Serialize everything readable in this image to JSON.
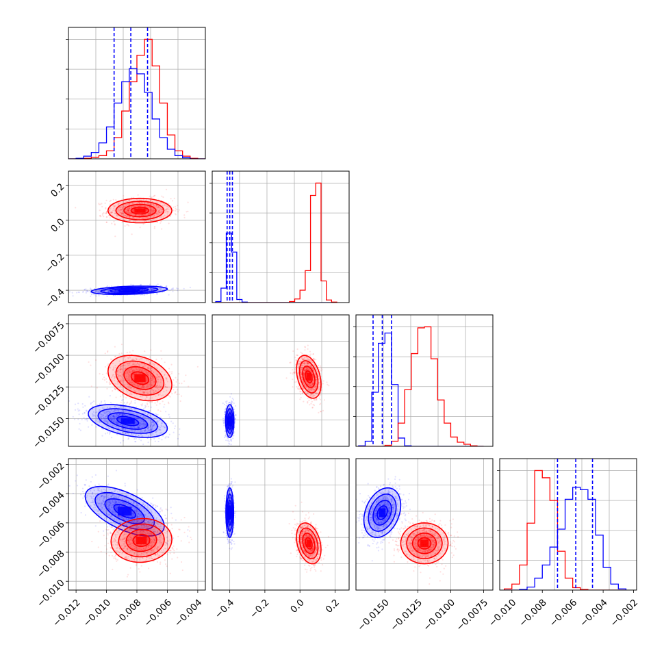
{
  "chart_data": {
    "type": "corner",
    "parameters": 4,
    "grid": true,
    "series": [
      {
        "color": "#0000ff",
        "means": [
          -0.0085,
          -0.4,
          -0.0152,
          -0.0053
        ],
        "stds": [
          0.0012,
          0.012,
          0.0007,
          0.00085
        ],
        "quantiles": [
          [
            -0.0095,
            -0.0084,
            -0.0073
          ],
          [
            -0.415,
            -0.4,
            -0.385
          ],
          [
            -0.0159,
            -0.0152,
            -0.0145
          ],
          [
            -0.007,
            -0.0058,
            -0.0047
          ]
        ]
      },
      {
        "color": "#ff0000",
        "means": [
          -0.0076,
          0.06,
          -0.0119,
          -0.0073
        ],
        "stds": [
          0.001,
          0.04,
          0.0009,
          0.0007
        ]
      }
    ],
    "panels": [
      {
        "id": "p00",
        "type": "histogram",
        "param": 0,
        "xlim": [
          -0.0125,
          -0.0035
        ],
        "yticks": 4,
        "series": [
          {
            "color": "#ff0000",
            "bin_edges": [
              -0.0125,
              -0.012,
              -0.0115,
              -0.011,
              -0.0105,
              -0.01,
              -0.0095,
              -0.009,
              -0.0085,
              -0.008,
              -0.0075,
              -0.007,
              -0.0065,
              -0.006,
              -0.0055,
              -0.005,
              -0.0045,
              -0.004,
              -0.0035
            ],
            "counts": [
              0,
              0,
              1,
              3,
              6,
              15,
              40,
              90,
              145,
              195,
              225,
              175,
              105,
              45,
              15,
              5,
              1,
              0
            ]
          },
          {
            "color": "#0000ff",
            "bin_edges": [
              -0.0125,
              -0.012,
              -0.0115,
              -0.011,
              -0.0105,
              -0.01,
              -0.0095,
              -0.009,
              -0.0085,
              -0.008,
              -0.0075,
              -0.007,
              -0.0065,
              -0.006,
              -0.0055,
              -0.005,
              -0.0045,
              -0.004,
              -0.0035
            ],
            "counts": [
              0,
              1,
              5,
              12,
              30,
              60,
              105,
              145,
              170,
              160,
              125,
              75,
              40,
              18,
              6,
              2,
              0,
              0
            ]
          }
        ],
        "quantile_lines": [
          -0.0095,
          -0.0084,
          -0.0073
        ]
      },
      {
        "id": "p11",
        "type": "histogram",
        "param": 1,
        "xlim": [
          -0.5,
          0.28
        ],
        "yticks": 4,
        "series": [
          {
            "color": "#0000ff",
            "bin_edges": [
              -0.48,
              -0.45,
              -0.42,
              -0.39,
              -0.36,
              -0.33,
              -0.3,
              -0.27,
              -0.24,
              -0.21,
              -0.18,
              -0.15,
              -0.12,
              -0.09,
              -0.06,
              -0.03,
              0.0,
              0.03,
              0.06,
              0.09,
              0.12,
              0.15,
              0.18,
              0.21
            ],
            "counts": [
              2,
              28,
              135,
              98,
              6,
              1,
              0,
              0,
              0,
              0,
              0,
              0,
              0,
              0,
              0,
              0,
              0,
              0,
              0,
              0,
              0,
              0,
              0
            ]
          },
          {
            "color": "#ff0000",
            "bin_edges": [
              -0.48,
              -0.45,
              -0.42,
              -0.39,
              -0.36,
              -0.33,
              -0.3,
              -0.27,
              -0.24,
              -0.21,
              -0.18,
              -0.15,
              -0.12,
              -0.09,
              -0.06,
              -0.03,
              0.0,
              0.03,
              0.06,
              0.09,
              0.12,
              0.15,
              0.18,
              0.21
            ],
            "counts": [
              0,
              0,
              0,
              0,
              0,
              0,
              0,
              0,
              0,
              0,
              0,
              0,
              0,
              0,
              2,
              7,
              24,
              62,
              208,
              232,
              42,
              5,
              1
            ]
          }
        ],
        "quantile_lines": [
          -0.415,
          -0.4,
          -0.385
        ]
      },
      {
        "id": "p22",
        "type": "histogram",
        "param": 2,
        "xlim": [
          -0.0172,
          -0.0068
        ],
        "yticks": 4,
        "series": [
          {
            "color": "#0000ff",
            "bin_edges": [
              -0.017,
              -0.0165,
              -0.016,
              -0.0155,
              -0.015,
              -0.0145,
              -0.014,
              -0.0135,
              -0.013,
              -0.0125,
              -0.012,
              -0.0115,
              -0.011,
              -0.0105,
              -0.01,
              -0.0095,
              -0.009,
              -0.0085,
              -0.008,
              -0.0075
            ],
            "counts": [
              1,
              10,
              105,
              200,
              220,
              120,
              16,
              1,
              0,
              0,
              0,
              0,
              0,
              0,
              0,
              0,
              0,
              0,
              0
            ]
          },
          {
            "color": "#ff0000",
            "bin_edges": [
              -0.017,
              -0.0165,
              -0.016,
              -0.0155,
              -0.015,
              -0.0145,
              -0.014,
              -0.0135,
              -0.013,
              -0.0125,
              -0.012,
              -0.0115,
              -0.011,
              -0.0105,
              -0.01,
              -0.0095,
              -0.009,
              -0.0085,
              -0.008,
              -0.0075
            ],
            "counts": [
              0,
              0,
              0,
              0,
              2,
              10,
              45,
              110,
              180,
              230,
              232,
              170,
              90,
              45,
              18,
              8,
              4,
              1,
              0
            ]
          }
        ],
        "quantile_lines": [
          -0.0159,
          -0.0152,
          -0.0145
        ]
      },
      {
        "id": "p33",
        "type": "histogram",
        "param": 3,
        "xlim": [
          -0.0108,
          -0.0018
        ],
        "yticks": 4,
        "series": [
          {
            "color": "#ff0000",
            "bin_edges": [
              -0.0105,
              -0.01,
              -0.0095,
              -0.009,
              -0.0085,
              -0.008,
              -0.0075,
              -0.007,
              -0.0065,
              -0.006,
              -0.0055,
              -0.005,
              -0.0045,
              -0.004,
              -0.0035,
              -0.003,
              -0.0025
            ],
            "counts": [
              2,
              10,
              42,
              112,
              200,
              188,
              150,
              65,
              20,
              4,
              1,
              0,
              0,
              0,
              0,
              0
            ]
          },
          {
            "color": "#0000ff",
            "bin_edges": [
              -0.0105,
              -0.01,
              -0.0095,
              -0.009,
              -0.0085,
              -0.008,
              -0.0075,
              -0.007,
              -0.0065,
              -0.006,
              -0.0055,
              -0.005,
              -0.0045,
              -0.004,
              -0.0035,
              -0.003,
              -0.0025
            ],
            "counts": [
              0,
              0,
              1,
              5,
              20,
              42,
              72,
              102,
              152,
              172,
              168,
              152,
              92,
              38,
              10,
              2
            ]
          }
        ],
        "quantile_lines": [
          -0.007,
          -0.0058,
          -0.0047
        ]
      },
      {
        "id": "p10",
        "type": "scatter_contour",
        "xparam": 0,
        "yparam": 1,
        "xlim": [
          -0.0125,
          -0.0035
        ],
        "ylim": [
          -0.47,
          0.28
        ],
        "xticks": [],
        "yticks": [
          0.2,
          0.0,
          -0.2,
          -0.4
        ],
        "yticklabels": [
          "0.2",
          "0.0",
          "−0.2",
          "−0.4"
        ],
        "blobs": [
          {
            "color": "#ff0000",
            "cx": -0.0078,
            "cy": 0.055,
            "sx": 0.00105,
            "sy": 0.035,
            "rho": 0.0
          },
          {
            "color": "#0000ff",
            "cx": -0.0085,
            "cy": -0.4,
            "sx": 0.00125,
            "sy": 0.012,
            "rho": 0.3
          }
        ]
      },
      {
        "id": "p20",
        "type": "scatter_contour",
        "xparam": 0,
        "yparam": 2,
        "xlim": [
          -0.0125,
          -0.0035
        ],
        "ylim": [
          -0.0172,
          -0.0068
        ],
        "xticks": [],
        "yticks": [
          -0.0075,
          -0.01,
          -0.0125,
          -0.015
        ],
        "yticklabels": [
          "−0.0075",
          "−0.0100",
          "−0.0125",
          "−0.0150"
        ],
        "blobs": [
          {
            "color": "#ff0000",
            "cx": -0.0078,
            "cy": -0.0118,
            "sx": 0.00105,
            "sy": 0.0009,
            "rho": -0.3
          },
          {
            "color": "#0000ff",
            "cx": -0.0086,
            "cy": -0.0152,
            "sx": 0.0013,
            "sy": 0.00065,
            "rho": -0.45
          }
        ]
      },
      {
        "id": "p21",
        "type": "scatter_contour",
        "xparam": 1,
        "yparam": 2,
        "xlim": [
          -0.5,
          0.28
        ],
        "ylim": [
          -0.0172,
          -0.0068
        ],
        "xticks": [],
        "yticks": [],
        "blobs": [
          {
            "color": "#ff0000",
            "cx": 0.05,
            "cy": -0.0117,
            "sx": 0.035,
            "sy": 0.00085,
            "rho": -0.35
          },
          {
            "color": "#0000ff",
            "cx": -0.4,
            "cy": -0.0152,
            "sx": 0.012,
            "sy": 0.00065,
            "rho": 0.0
          }
        ]
      },
      {
        "id": "p30",
        "type": "scatter_contour",
        "xparam": 0,
        "yparam": 3,
        "xlim": [
          -0.0125,
          -0.0035
        ],
        "ylim": [
          -0.0106,
          -0.0016
        ],
        "xticks": [
          -0.012,
          -0.01,
          -0.008,
          -0.006,
          -0.004
        ],
        "xticklabels": [
          "−0.012",
          "−0.010",
          "−0.008",
          "−0.006",
          "−0.004"
        ],
        "yticks": [
          -0.002,
          -0.004,
          -0.006,
          -0.008,
          -0.01
        ],
        "yticklabels": [
          "−0.002",
          "−0.004",
          "−0.006",
          "−0.008",
          "−0.010"
        ],
        "blobs": [
          {
            "color": "#0000ff",
            "cx": -0.0088,
            "cy": -0.0052,
            "sx": 0.0013,
            "sy": 0.00085,
            "rho": -0.6
          },
          {
            "color": "#ff0000",
            "cx": -0.0077,
            "cy": -0.0072,
            "sx": 0.001,
            "sy": 0.00075,
            "rho": 0.05
          }
        ]
      },
      {
        "id": "p31",
        "type": "scatter_contour",
        "xparam": 1,
        "yparam": 3,
        "xlim": [
          -0.5,
          0.28
        ],
        "ylim": [
          -0.0106,
          -0.0016
        ],
        "xticks": [
          -0.4,
          -0.2,
          0.0,
          0.2
        ],
        "xticklabels": [
          "−0.4",
          "−0.2",
          "0.0",
          "0.2"
        ],
        "yticks": [],
        "blobs": [
          {
            "color": "#0000ff",
            "cx": -0.4,
            "cy": -0.0053,
            "sx": 0.011,
            "sy": 0.00085,
            "rho": 0.0
          },
          {
            "color": "#ff0000",
            "cx": 0.05,
            "cy": -0.0074,
            "sx": 0.035,
            "sy": 0.0007,
            "rho": -0.3
          }
        ]
      },
      {
        "id": "p32",
        "type": "scatter_contour",
        "xparam": 2,
        "yparam": 3,
        "xlim": [
          -0.0172,
          -0.0068
        ],
        "ylim": [
          -0.0106,
          -0.0016
        ],
        "xticks": [
          -0.015,
          -0.0125,
          -0.01,
          -0.0075
        ],
        "xticklabels": [
          "−0.0150",
          "−0.0125",
          "−0.0100",
          "−0.0075"
        ],
        "yticks": [],
        "blobs": [
          {
            "color": "#0000ff",
            "cx": -0.0152,
            "cy": -0.0053,
            "sx": 0.0007,
            "sy": 0.00085,
            "rho": 0.3
          },
          {
            "color": "#ff0000",
            "cx": -0.012,
            "cy": -0.0074,
            "sx": 0.0009,
            "sy": 0.0007,
            "rho": 0.0
          }
        ]
      }
    ],
    "diag_xticks": [
      {
        "panel": "p33",
        "xticks": [
          -0.01,
          -0.008,
          -0.006,
          -0.004,
          -0.002
        ],
        "xticklabels": [
          "−0.010",
          "−0.008",
          "−0.006",
          "−0.004",
          "−0.002"
        ]
      }
    ]
  }
}
